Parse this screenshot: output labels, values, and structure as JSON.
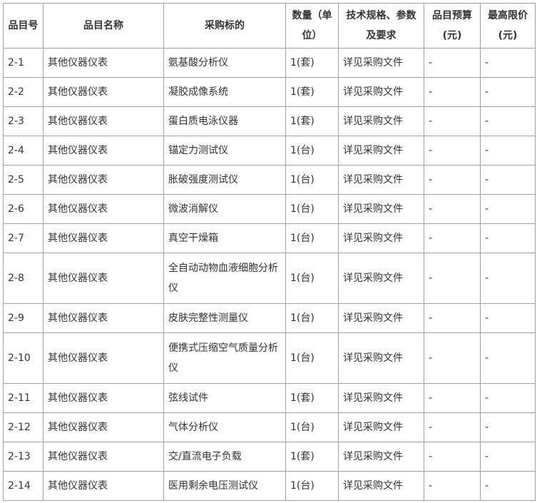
{
  "headers": [
    "品目号",
    "品目名称",
    "采购标的",
    "数量（单位）",
    "技术规格、参数及要求",
    "品目预算(元)",
    "最高限价(元)"
  ],
  "rows": [
    [
      "2-1",
      "其他仪器仪表",
      "氨基酸分析仪",
      "1(套)",
      "详见采购文件",
      "-",
      "-"
    ],
    [
      "2-2",
      "其他仪器仪表",
      "凝胶成像系统",
      "1(套)",
      "详见采购文件",
      "-",
      "-"
    ],
    [
      "2-3",
      "其他仪器仪表",
      "蛋白质电泳仪器",
      "1(套)",
      "详见采购文件",
      "-",
      "-"
    ],
    [
      "2-4",
      "其他仪器仪表",
      "锚定力测试仪",
      "1(台)",
      "详见采购文件",
      "-",
      "-"
    ],
    [
      "2-5",
      "其他仪器仪表",
      "胀破强度测试仪",
      "1(台)",
      "详见采购文件",
      "-",
      "-"
    ],
    [
      "2-6",
      "其他仪器仪表",
      "微波消解仪",
      "1(台)",
      "详见采购文件",
      "-",
      "-"
    ],
    [
      "2-7",
      "其他仪器仪表",
      "真空干燥箱",
      "1(台)",
      "详见采购文件",
      "-",
      "-"
    ],
    [
      "2-8",
      "其他仪器仪表",
      "全自动动物血液细胞分析仪",
      "1(台)",
      "详见采购文件",
      "-",
      "-"
    ],
    [
      "2-9",
      "其他仪器仪表",
      "皮肤完整性测量仪",
      "1(台)",
      "详见采购文件",
      "-",
      "-"
    ],
    [
      "2-10",
      "其他仪器仪表",
      "便携式压缩空气质量分析仪",
      "1(台)",
      "详见采购文件",
      "-",
      "-"
    ],
    [
      "2-11",
      "其他仪器仪表",
      "弦线试件",
      "1(套)",
      "详见采购文件",
      "-",
      "-"
    ],
    [
      "2-12",
      "其他仪器仪表",
      "气体分析仪",
      "1(台)",
      "详见采购文件",
      "-",
      "-"
    ],
    [
      "2-13",
      "其他仪器仪表",
      "交/直流电子负载",
      "1(套)",
      "详见采购文件",
      "-",
      "-"
    ],
    [
      "2-14",
      "其他仪器仪表",
      "医用剩余电压测试仪",
      "1(台)",
      "详见采购文件",
      "-",
      "-"
    ]
  ]
}
